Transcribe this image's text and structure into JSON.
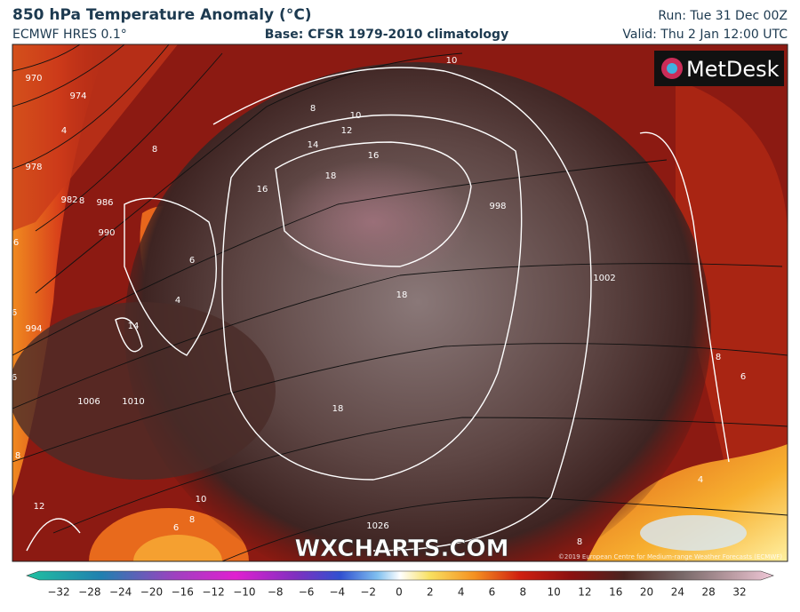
{
  "header": {
    "title": "850 hPa Temperature Anomaly (°C)",
    "model": "ECMWF HRES 0.1°",
    "base": "Base: CFSR 1979-2010 climatology",
    "run": "Run: Tue 31 Dec 00Z",
    "valid": "Valid: Thu 2 Jan 12:00 UTC"
  },
  "logo": "MetDesk",
  "watermark": "WXCHARTS.COM",
  "copyright": "©2019 European Centre for Medium-range Weather Forecasts (ECMWF)",
  "contour_labels": [
    "970",
    "974",
    "978",
    "982",
    "986",
    "990",
    "994",
    "1006",
    "1010",
    "1026",
    "1002",
    "998",
    "8",
    "10",
    "10",
    "12",
    "14",
    "16",
    "16",
    "18",
    "8",
    "8",
    "6",
    "4",
    "4",
    "6",
    "6",
    "14",
    "18",
    "18",
    "12",
    "10",
    "8",
    "6",
    "8",
    "6",
    "8",
    "6",
    "4",
    "8"
  ],
  "colorbar": {
    "labels": [
      "−32",
      "−28",
      "−24",
      "−20",
      "−16",
      "−12",
      "−10",
      "−8",
      "−6",
      "−4",
      "−2",
      "0",
      "2",
      "4",
      "6",
      "8",
      "10",
      "12",
      "16",
      "20",
      "24",
      "28",
      "32"
    ]
  }
}
